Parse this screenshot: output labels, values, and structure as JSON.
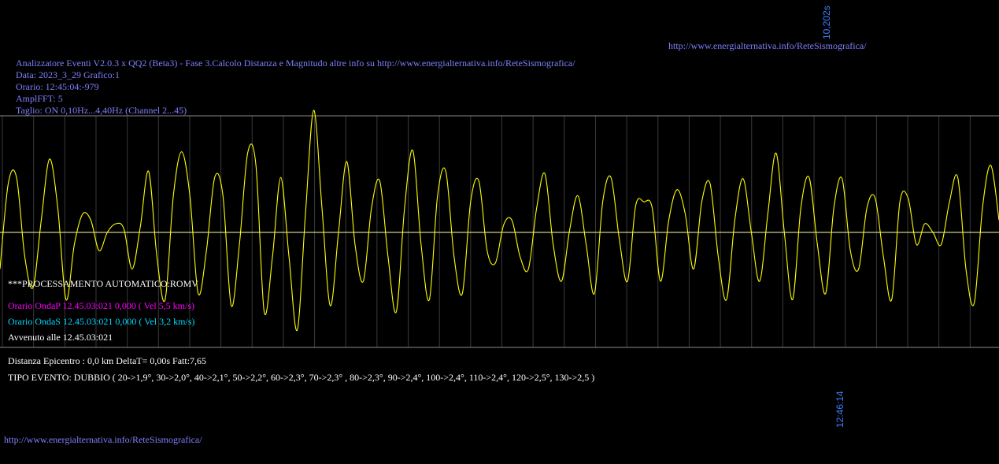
{
  "colors": {
    "background": "#000000",
    "frame": "#8a8a8a",
    "gridline": "#3a3a3a",
    "baseline": "#ffffa0",
    "trace": "#ffff00",
    "info_text": "#7f7fff",
    "onda_p": "#ff00ff",
    "onda_s": "#00d8ff",
    "time_label": "#4080ff"
  },
  "header": {
    "url_top": "http://www.energialternativa.info/ReteSismografica/",
    "line1": "Analizzatore Eventi V2.0.3 x QQ2 (Beta3) - Fase 3.Calcolo Distanza e Magnitudo altre info su http://www.energialternativa.info/ReteSismografica/",
    "line2": "Data: 2023_3_29 Grafico:1",
    "line3": "Orario: 12:45:04:-979",
    "line4": "AmplFFT: 5",
    "line5": "Taglio: ON 0,10Hz...4,40Hz      (Channel 2...45)"
  },
  "time_labels": {
    "top": "10,202s",
    "bottom": "12:46:14"
  },
  "analysis": {
    "processing": "***PROCESSAMENTO AUTOMATICO:ROMV",
    "onda_p": "Orario OndaP 12.45.03:021  0,000 ( Vel 5,5 km/s)",
    "onda_s": "Orario OndaS 12.45.03:021  0,000 ( Vel 3,2 km/s)",
    "avvenuto": "Avvenuto alle 12.45.03:021",
    "distanza": "Distanza Epicentro : 0,0 km DeltaT= 0,00s  Fatt:7,65",
    "tipo_evento": "TIPO EVENTO: DUBBIO ( 20->1,9°, 30->2,0°, 40->2,1°, 50->2,2°, 60->2,3°, 70->2,3° , 80->2,3°, 90->2,4°, 100->2,4°, 110->2,4°, 120->2,5°, 130->2,5 )"
  },
  "footer": {
    "url": "http://www.energialternativa.info/ReteSismografica/"
  },
  "chart_data": {
    "type": "line",
    "gridlines": 32,
    "ylim": [
      -1,
      1
    ],
    "series": [
      {
        "values": [
          -0.3,
          0.4,
          0.45,
          -0.2,
          -0.45,
          0.1,
          0.6,
          0.2,
          -0.55,
          -0.1,
          0.15,
          0.1,
          -0.15,
          0.0,
          0.07,
          0.03,
          -0.3,
          0.05,
          0.5,
          -0.2,
          -0.55,
          0.3,
          0.66,
          0.3,
          -0.5,
          -0.15,
          0.45,
          0.3,
          -0.6,
          -0.1,
          0.65,
          0.55,
          -0.65,
          -0.2,
          0.45,
          -0.2,
          -0.8,
          0.15,
          1.0,
          0.2,
          -0.6,
          0.0,
          0.58,
          -0.1,
          -0.4,
          0.2,
          0.42,
          -0.2,
          -0.65,
          0.2,
          0.67,
          -0.1,
          -0.55,
          0.3,
          0.5,
          -0.2,
          -0.5,
          0.25,
          0.42,
          -0.15,
          -0.25,
          0.06,
          0.1,
          -0.2,
          -0.3,
          0.2,
          0.48,
          -0.1,
          -0.4,
          0.02,
          0.3,
          -0.1,
          -0.5,
          0.25,
          0.45,
          -0.05,
          -0.4,
          0.22,
          0.25,
          0.2,
          -0.4,
          0.1,
          0.35,
          0.15,
          -0.3,
          0.25,
          0.4,
          -0.2,
          -0.55,
          0.1,
          0.44,
          0.0,
          -0.4,
          0.15,
          0.65,
          0.0,
          -0.55,
          0.2,
          0.45,
          -0.1,
          -0.5,
          0.2,
          0.44,
          -0.15,
          -0.3,
          0.2,
          0.28,
          -0.2,
          -0.55,
          0.25,
          0.28,
          -0.1,
          0.07,
          0.0,
          -0.1,
          0.25,
          0.45,
          -0.3,
          -0.58,
          0.2,
          0.55,
          0.1
        ]
      }
    ]
  }
}
